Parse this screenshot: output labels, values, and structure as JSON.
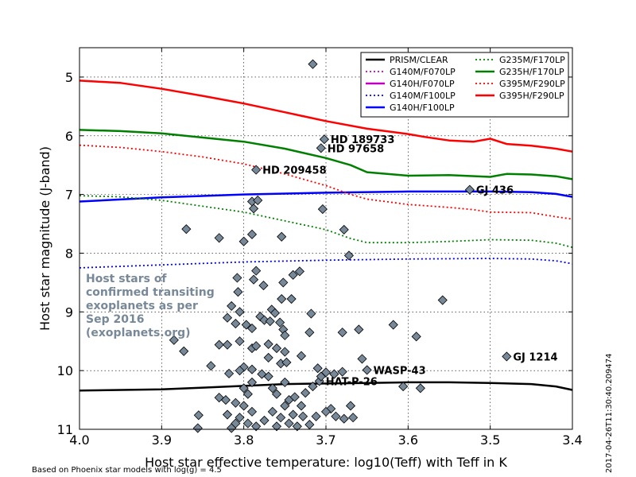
{
  "chart_data": {
    "type": "line",
    "xlabel": "Host star effective temperature: log10(Teff) with Teff in K",
    "ylabel": "Host star magnitude (J-band)",
    "xlim": [
      4.0,
      3.4
    ],
    "ylim": [
      11,
      4.5
    ],
    "y_inverted": true,
    "grid": true,
    "legend_position": "top-right",
    "x_ticks": [
      "4.0",
      "3.9",
      "3.8",
      "3.7",
      "3.6",
      "3.5",
      "3.4"
    ],
    "y_ticks": [
      "5",
      "6",
      "7",
      "8",
      "9",
      "10",
      "11"
    ],
    "series": [
      {
        "name": "PRISM/CLEAR",
        "color": "#000000",
        "style": "solid",
        "x": [
          4.0,
          3.9,
          3.85,
          3.8,
          3.75,
          3.7,
          3.65,
          3.6,
          3.55,
          3.5,
          3.45,
          3.42,
          3.4
        ],
        "y": [
          10.34,
          10.32,
          10.29,
          10.26,
          10.23,
          10.22,
          10.21,
          10.2,
          10.2,
          10.21,
          10.23,
          10.27,
          10.33
        ]
      },
      {
        "name": "G140M/F070LP",
        "color": "#bf00bf",
        "style": "dotted",
        "x": [],
        "y": []
      },
      {
        "name": "G140H/F070LP",
        "color": "#bf00bf",
        "style": "solid",
        "x": [],
        "y": []
      },
      {
        "name": "G140M/F100LP",
        "color": "#0000ff",
        "style": "dotted",
        "x": [
          4.0,
          3.9,
          3.8,
          3.7,
          3.6,
          3.5,
          3.45,
          3.42,
          3.4
        ],
        "y": [
          8.25,
          8.2,
          8.15,
          8.12,
          8.1,
          8.09,
          8.1,
          8.13,
          8.18
        ]
      },
      {
        "name": "G140H/F100LP",
        "color": "#0000ff",
        "style": "solid",
        "x": [
          4.0,
          3.9,
          3.8,
          3.7,
          3.6,
          3.5,
          3.45,
          3.42,
          3.4
        ],
        "y": [
          7.12,
          7.05,
          7.0,
          6.97,
          6.95,
          6.95,
          6.96,
          6.99,
          7.04
        ]
      },
      {
        "name": "G235M/F170LP",
        "color": "#008000",
        "style": "dotted",
        "x": [
          4.0,
          3.95,
          3.9,
          3.85,
          3.8,
          3.75,
          3.7,
          3.67,
          3.65,
          3.6,
          3.55,
          3.5,
          3.45,
          3.42,
          3.4
        ],
        "y": [
          7.02,
          7.04,
          7.1,
          7.2,
          7.3,
          7.45,
          7.6,
          7.75,
          7.82,
          7.82,
          7.8,
          7.77,
          7.78,
          7.83,
          7.9
        ]
      },
      {
        "name": "G235H/F170LP",
        "color": "#008000",
        "style": "solid",
        "x": [
          4.0,
          3.95,
          3.9,
          3.85,
          3.8,
          3.75,
          3.7,
          3.67,
          3.65,
          3.6,
          3.55,
          3.5,
          3.48,
          3.45,
          3.42,
          3.4
        ],
        "y": [
          5.9,
          5.92,
          5.96,
          6.03,
          6.1,
          6.22,
          6.38,
          6.5,
          6.62,
          6.68,
          6.67,
          6.7,
          6.65,
          6.66,
          6.69,
          6.74
        ]
      },
      {
        "name": "G395M/F290LP",
        "color": "#ff0000",
        "style": "dotted",
        "x": [
          4.0,
          3.95,
          3.9,
          3.85,
          3.8,
          3.75,
          3.7,
          3.67,
          3.65,
          3.6,
          3.55,
          3.52,
          3.5,
          3.45,
          3.42,
          3.4
        ],
        "y": [
          6.16,
          6.2,
          6.27,
          6.36,
          6.48,
          6.65,
          6.85,
          7.0,
          7.08,
          7.17,
          7.22,
          7.26,
          7.3,
          7.31,
          7.38,
          7.42
        ]
      },
      {
        "name": "G395H/F290LP",
        "color": "#ff0000",
        "style": "solid",
        "x": [
          4.0,
          3.95,
          3.9,
          3.85,
          3.8,
          3.75,
          3.7,
          3.65,
          3.6,
          3.58,
          3.55,
          3.52,
          3.5,
          3.48,
          3.45,
          3.42,
          3.4
        ],
        "y": [
          5.06,
          5.1,
          5.2,
          5.32,
          5.45,
          5.6,
          5.75,
          5.88,
          5.97,
          6.02,
          6.08,
          6.1,
          6.05,
          6.14,
          6.17,
          6.22,
          6.27
        ]
      }
    ],
    "points_color": "#778899",
    "points": [
      [
        3.716,
        4.78
      ],
      [
        3.702,
        6.06
      ],
      [
        3.706,
        6.21
      ],
      [
        3.785,
        6.58
      ],
      [
        3.525,
        6.92
      ],
      [
        3.704,
        7.25
      ],
      [
        3.79,
        7.12
      ],
      [
        3.783,
        7.1
      ],
      [
        3.788,
        7.24
      ],
      [
        3.87,
        7.59
      ],
      [
        3.83,
        7.74
      ],
      [
        3.8,
        7.8
      ],
      [
        3.79,
        7.68
      ],
      [
        3.754,
        7.72
      ],
      [
        3.678,
        7.6
      ],
      [
        3.672,
        8.04
      ],
      [
        3.785,
        8.3
      ],
      [
        3.788,
        8.45
      ],
      [
        3.808,
        8.42
      ],
      [
        3.776,
        8.55
      ],
      [
        3.74,
        8.37
      ],
      [
        3.732,
        8.31
      ],
      [
        3.752,
        8.5
      ],
      [
        3.754,
        8.78
      ],
      [
        3.742,
        8.78
      ],
      [
        3.807,
        8.66
      ],
      [
        3.558,
        8.8
      ],
      [
        3.766,
        8.96
      ],
      [
        3.815,
        8.9
      ],
      [
        3.805,
        9.0
      ],
      [
        3.78,
        9.08
      ],
      [
        3.82,
        9.1
      ],
      [
        3.762,
        9.02
      ],
      [
        3.718,
        9.03
      ],
      [
        3.81,
        9.2
      ],
      [
        3.79,
        9.28
      ],
      [
        3.797,
        9.22
      ],
      [
        3.775,
        9.14
      ],
      [
        3.768,
        9.16
      ],
      [
        3.756,
        9.18
      ],
      [
        3.752,
        9.3
      ],
      [
        3.75,
        9.4
      ],
      [
        3.72,
        9.35
      ],
      [
        3.68,
        9.35
      ],
      [
        3.66,
        9.3
      ],
      [
        3.618,
        9.22
      ],
      [
        3.59,
        9.42
      ],
      [
        3.885,
        9.48
      ],
      [
        3.873,
        9.67
      ],
      [
        3.83,
        9.56
      ],
      [
        3.82,
        9.56
      ],
      [
        3.805,
        9.5
      ],
      [
        3.79,
        9.62
      ],
      [
        3.785,
        9.58
      ],
      [
        3.77,
        9.55
      ],
      [
        3.76,
        9.62
      ],
      [
        3.75,
        9.68
      ],
      [
        3.73,
        9.75
      ],
      [
        3.71,
        9.96
      ],
      [
        3.7,
        10.03
      ],
      [
        3.69,
        10.06
      ],
      [
        3.68,
        10.02
      ],
      [
        3.656,
        9.8
      ],
      [
        3.65,
        9.99
      ],
      [
        3.77,
        9.78
      ],
      [
        3.755,
        9.88
      ],
      [
        3.748,
        9.86
      ],
      [
        3.79,
        9.98
      ],
      [
        3.8,
        9.94
      ],
      [
        3.805,
        10.0
      ],
      [
        3.818,
        10.05
      ],
      [
        3.84,
        9.92
      ],
      [
        3.83,
        10.46
      ],
      [
        3.822,
        10.5
      ],
      [
        3.81,
        10.55
      ],
      [
        3.8,
        10.3
      ],
      [
        3.795,
        10.4
      ],
      [
        3.79,
        10.2
      ],
      [
        3.778,
        10.06
      ],
      [
        3.77,
        10.1
      ],
      [
        3.765,
        10.3
      ],
      [
        3.76,
        10.4
      ],
      [
        3.75,
        10.2
      ],
      [
        3.745,
        10.5
      ],
      [
        3.738,
        10.45
      ],
      [
        3.73,
        10.6
      ],
      [
        3.725,
        10.38
      ],
      [
        3.716,
        10.27
      ],
      [
        3.708,
        10.18
      ],
      [
        3.706,
        10.1
      ],
      [
        3.694,
        10.65
      ],
      [
        3.688,
        10.78
      ],
      [
        3.678,
        10.82
      ],
      [
        3.667,
        10.8
      ],
      [
        3.67,
        10.6
      ],
      [
        3.606,
        10.27
      ],
      [
        3.585,
        10.3
      ],
      [
        3.48,
        9.76
      ],
      [
        3.855,
        10.76
      ],
      [
        3.856,
        10.98
      ],
      [
        3.815,
        10.98
      ],
      [
        3.805,
        10.8
      ],
      [
        3.8,
        10.6
      ],
      [
        3.795,
        10.9
      ],
      [
        3.79,
        10.7
      ],
      [
        3.785,
        10.95
      ],
      [
        3.775,
        10.85
      ],
      [
        3.765,
        10.7
      ],
      [
        3.76,
        10.95
      ],
      [
        3.755,
        10.8
      ],
      [
        3.75,
        10.6
      ],
      [
        3.745,
        10.9
      ],
      [
        3.74,
        10.75
      ],
      [
        3.735,
        10.95
      ],
      [
        3.728,
        10.78
      ],
      [
        3.72,
        10.92
      ],
      [
        3.712,
        10.78
      ],
      [
        3.7,
        10.7
      ],
      [
        3.82,
        10.75
      ],
      [
        3.81,
        10.9
      ]
    ],
    "labeled_stars": [
      {
        "name": "HD 189733",
        "x": 3.702,
        "y": 6.06
      },
      {
        "name": "HD 97658",
        "x": 3.706,
        "y": 6.21
      },
      {
        "name": "HD 209458",
        "x": 3.785,
        "y": 6.58
      },
      {
        "name": "GJ 436",
        "x": 3.525,
        "y": 6.92
      },
      {
        "name": "WASP-43",
        "x": 3.65,
        "y": 9.99
      },
      {
        "name": "HAT-P-26",
        "x": 3.708,
        "y": 10.18
      },
      {
        "name": "GJ 1214",
        "x": 3.48,
        "y": 9.76
      }
    ]
  },
  "annotation_lines": [
    "Host stars of",
    "confirmed transiting",
    "exoplanets as per",
    "Sep 2016",
    "(exoplanets.org)"
  ],
  "footer_note": "Based on Phoenix star models with log(g) = 4.5",
  "timestamp": "2017-04-26T11:30:40.209474"
}
